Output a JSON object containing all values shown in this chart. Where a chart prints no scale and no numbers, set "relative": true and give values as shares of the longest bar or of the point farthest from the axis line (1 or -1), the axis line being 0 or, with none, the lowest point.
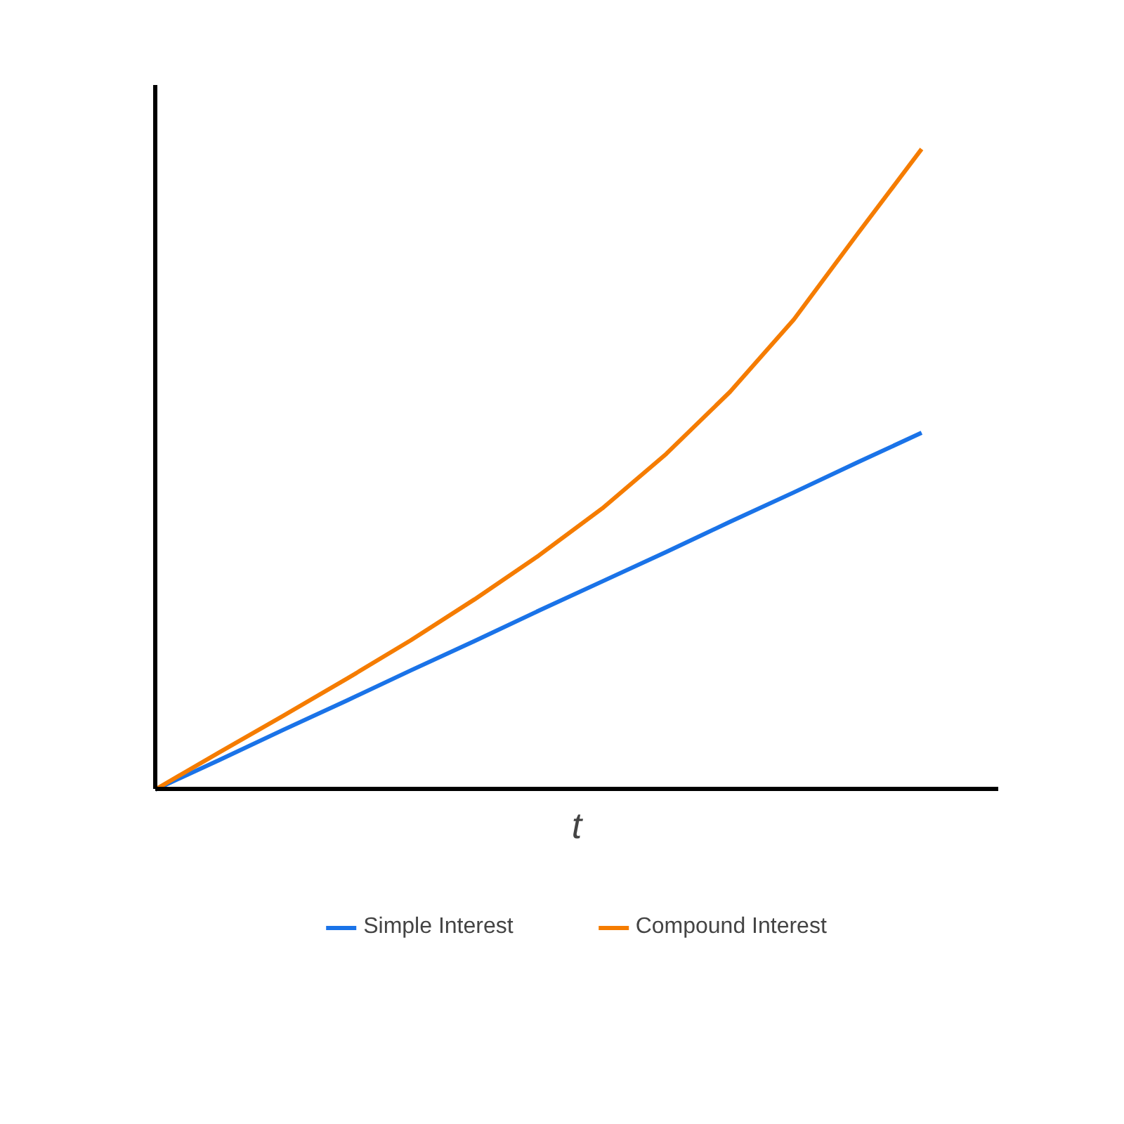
{
  "chart_data": {
    "type": "line",
    "relative": true,
    "xlabel": "t",
    "categories": [
      null,
      null,
      null,
      null,
      null,
      null,
      null,
      null,
      null,
      null,
      null,
      null,
      null
    ],
    "legend": "bottom",
    "grid": false,
    "series": [
      {
        "name": "Simple Interest",
        "color": "#1a73e8",
        "values": [
          0,
          0.046,
          0.093,
          0.139,
          0.186,
          0.232,
          0.279,
          0.325,
          0.371,
          0.418,
          0.464,
          0.511,
          0.557
        ]
      },
      {
        "name": "Compound Interest",
        "color": "#f57c00",
        "values": [
          0,
          0.058,
          0.115,
          0.173,
          0.233,
          0.297,
          0.365,
          0.439,
          0.524,
          0.621,
          0.734,
          0.868,
          1
        ]
      }
    ]
  }
}
